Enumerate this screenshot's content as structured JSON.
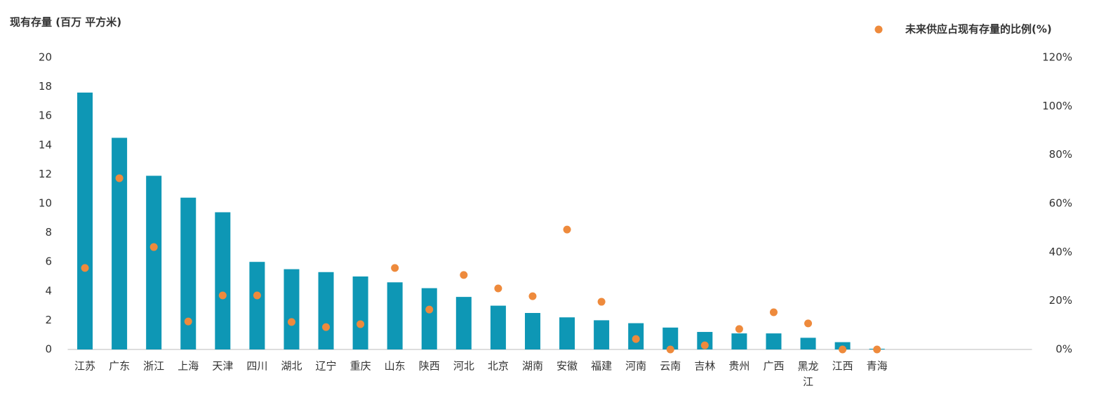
{
  "chart_data": {
    "type": "bar+scatter",
    "y_axis_title": "现有存量 (百万 平方米)",
    "categories": [
      "江苏",
      "广东",
      "浙江",
      "上海",
      "天津",
      "四川",
      "湖北",
      "辽宁",
      "重庆",
      "山东",
      "陕西",
      "河北",
      "北京",
      "湖南",
      "安徽",
      "福建",
      "河南",
      "云南",
      "吉林",
      "贵州",
      "广西",
      "黑龙江",
      "江西",
      "青海",
      null,
      null,
      null,
      null
    ],
    "series": [
      {
        "type": "bar",
        "color": "#0e97b5",
        "values": [
          17.6,
          14.5,
          11.9,
          10.4,
          9.4,
          6.0,
          5.5,
          5.3,
          5.0,
          4.6,
          4.2,
          3.6,
          3.0,
          2.5,
          2.2,
          2.0,
          1.8,
          1.5,
          1.2,
          1.1,
          1.1,
          0.8,
          0.5,
          0.05,
          null,
          null,
          null,
          null
        ]
      },
      {
        "type": "scatter",
        "name": "未来供应占现有存量的比例(%)",
        "color": "#ee8a3c",
        "axis": "y2",
        "values": [
          33.5,
          70.4,
          42.1,
          11.5,
          22.2,
          22.2,
          11.3,
          9.2,
          10.4,
          33.5,
          16.4,
          30.6,
          25.1,
          21.9,
          49.3,
          19.6,
          4.3,
          0,
          1.7,
          8.4,
          15.3,
          10.7,
          0,
          0,
          null,
          null,
          null,
          null
        ]
      }
    ],
    "ylim": [
      0,
      20
    ],
    "yticks": [
      0,
      2,
      4,
      6,
      8,
      10,
      12,
      14,
      16,
      18,
      20
    ],
    "y2lim": [
      0,
      120
    ],
    "y2ticks": [
      {
        "value": 0,
        "label": "0%"
      },
      {
        "value": 20,
        "label": "20%"
      },
      {
        "value": 40,
        "label": "40%"
      },
      {
        "value": 60,
        "label": "60%"
      },
      {
        "value": 80,
        "label": "80%"
      },
      {
        "value": 100,
        "label": "100%"
      },
      {
        "value": 120,
        "label": "120%"
      }
    ],
    "legend": "top-right",
    "grid": false
  }
}
